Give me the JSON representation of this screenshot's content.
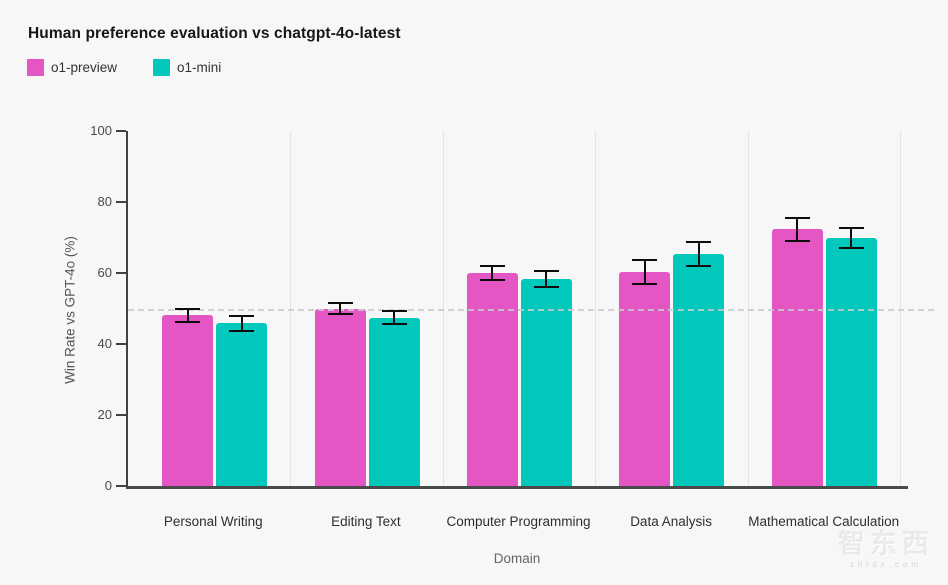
{
  "chart_data": {
    "type": "bar",
    "title": "Human preference evaluation vs chatgpt-4o-latest",
    "xlabel": "Domain",
    "ylabel": "Win Rate vs GPT-4o (%)",
    "ylim": [
      0,
      100
    ],
    "yticks": [
      0,
      20,
      40,
      60,
      80,
      100
    ],
    "reference_line_y": 50,
    "legend_position": "top-left",
    "grid": "vertical-group-separators",
    "categories": [
      "Personal Writing",
      "Editing Text",
      "Computer Programming",
      "Data Analysis",
      "Mathematical Calculation"
    ],
    "series": [
      {
        "name": "o1-preview",
        "color": "#e556c5",
        "values": [
          48.1,
          50.0,
          60.0,
          60.2,
          72.3
        ],
        "errors": [
          2.1,
          1.9,
          2.2,
          3.6,
          3.5
        ]
      },
      {
        "name": "o1-mini",
        "color": "#02c8bc",
        "values": [
          45.8,
          47.4,
          58.4,
          65.4,
          69.8
        ],
        "errors": [
          2.3,
          2.1,
          2.5,
          3.6,
          3.1
        ]
      }
    ]
  },
  "watermark": {
    "logo": "智东西",
    "sub": "zhidx.com"
  }
}
